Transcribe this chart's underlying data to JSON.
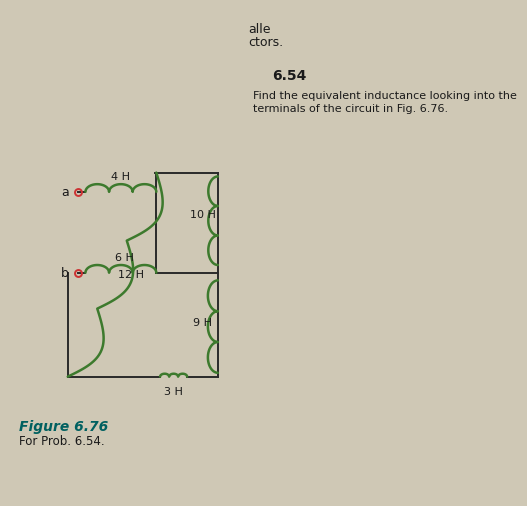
{
  "bg_color": "#cfc8b5",
  "text_color": "#1a1a1a",
  "inductor_color": "#3d7a2d",
  "wire_color": "#2a2a2a",
  "terminal_color": "#cc3333",
  "teal_color": "#006060",
  "problem_number": "6.54",
  "problem_text1": "Find the equivalent inductance looking into the",
  "problem_text2": "terminals of the circuit in Fig. 6.76.",
  "right_text1": "alle",
  "right_text2": "ctors.",
  "figure_label": "Figure 6.76",
  "figure_sublabel": "For Prob. 6.54.",
  "inductors": [
    "4 H",
    "10 H",
    "9 H",
    "6 H",
    "12 H",
    "3 H"
  ]
}
